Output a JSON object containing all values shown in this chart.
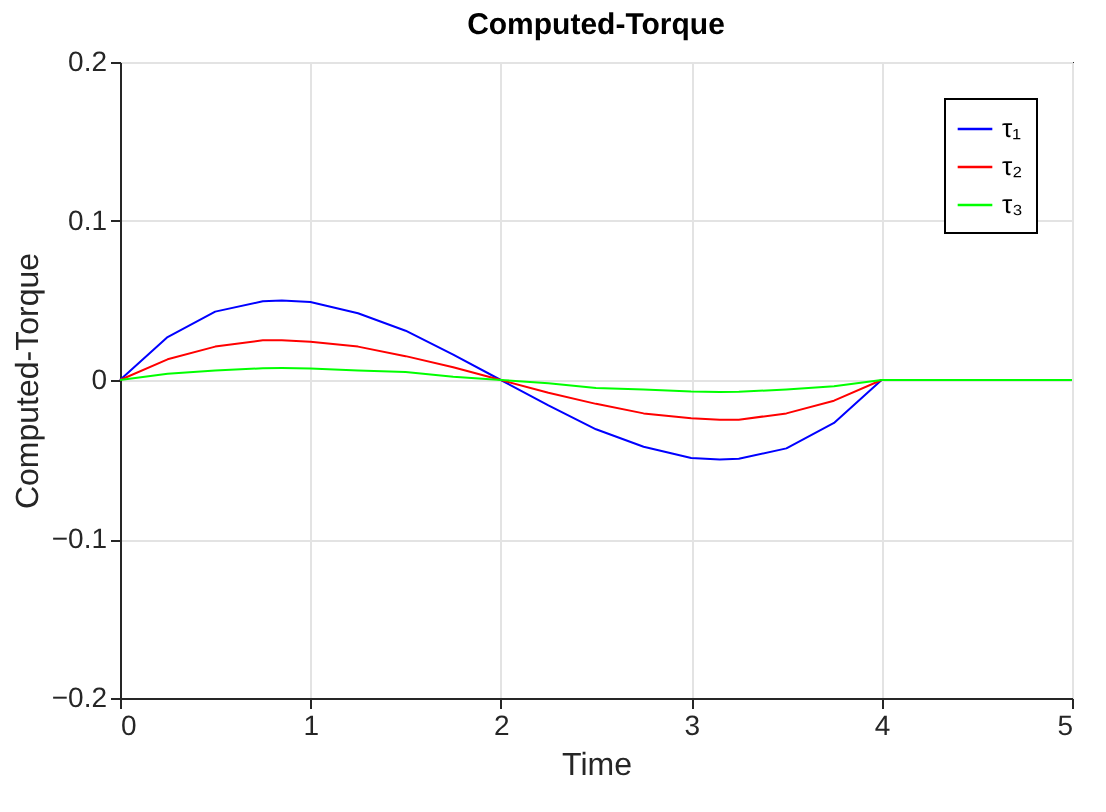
{
  "chart_data": {
    "type": "line",
    "title": "Computed-Torque",
    "xlabel": "Time",
    "ylabel": "Computed-Torque",
    "x": [
      0,
      0.25,
      0.5,
      0.75,
      0.85,
      1,
      1.25,
      1.5,
      1.75,
      2,
      2.25,
      2.5,
      2.75,
      3,
      3.15,
      3.25,
      3.5,
      3.75,
      4,
      4.5,
      5
    ],
    "series": [
      {
        "name": "τ₁",
        "color": "#0000ff",
        "values": [
          0,
          0.027,
          0.043,
          0.0495,
          0.05,
          0.049,
          0.042,
          0.031,
          0.016,
          0,
          -0.016,
          -0.031,
          -0.042,
          -0.049,
          -0.05,
          -0.0495,
          -0.043,
          -0.027,
          0,
          0,
          0
        ]
      },
      {
        "name": "τ₂",
        "color": "#ff0000",
        "values": [
          0,
          0.013,
          0.021,
          0.025,
          0.025,
          0.024,
          0.021,
          0.015,
          0.008,
          0,
          -0.008,
          -0.015,
          -0.021,
          -0.024,
          -0.025,
          -0.025,
          -0.021,
          -0.013,
          0,
          0,
          0
        ]
      },
      {
        "name": "τ₃",
        "color": "#00ff00",
        "values": [
          0,
          0.004,
          0.006,
          0.0074,
          0.0075,
          0.0073,
          0.006,
          0.005,
          0.002,
          0,
          -0.002,
          -0.005,
          -0.006,
          -0.0073,
          -0.0075,
          -0.0074,
          -0.006,
          -0.004,
          0,
          0,
          0
        ]
      }
    ],
    "xlim": [
      0,
      5
    ],
    "xticks": [
      0,
      1,
      2,
      3,
      4,
      5
    ],
    "ylim": [
      -0.2,
      0.2
    ],
    "yticks": [
      -0.2,
      -0.1,
      0,
      0.1,
      0.2
    ],
    "grid": true,
    "legend": "top right",
    "line_style": "solid",
    "marker": "none"
  }
}
